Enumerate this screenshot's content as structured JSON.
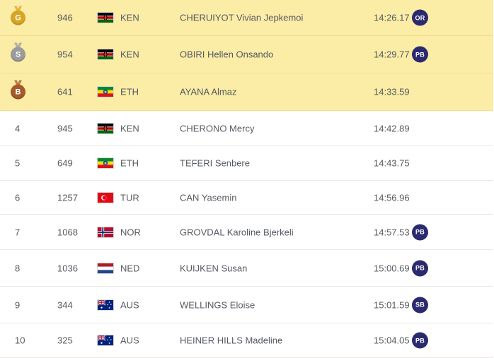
{
  "colors": {
    "medal_row_bg": "#fbeca6",
    "badge_bg": "#2b2a6f",
    "gold": "#d8a623",
    "silver": "#9b9b9b",
    "bronze": "#a45a2a"
  },
  "results": [
    {
      "rank": "",
      "medal": "G",
      "medal_color": "#d8a623",
      "bib": "946",
      "flag": "kenya-flag-icon",
      "country": "KEN",
      "name": "CHERUIYOT Vivian Jepkemoi",
      "mark": "14:26.17",
      "badge": "OR"
    },
    {
      "rank": "",
      "medal": "S",
      "medal_color": "#9b9b9b",
      "bib": "954",
      "flag": "kenya-flag-icon",
      "country": "KEN",
      "name": "OBIRI Hellen Onsando",
      "mark": "14:29.77",
      "badge": "PB"
    },
    {
      "rank": "",
      "medal": "B",
      "medal_color": "#a45a2a",
      "bib": "641",
      "flag": "ethiopia-flag-icon",
      "country": "ETH",
      "name": "AYANA Almaz",
      "mark": "14:33.59",
      "badge": ""
    },
    {
      "rank": "4",
      "medal": "",
      "bib": "945",
      "flag": "kenya-flag-icon",
      "country": "KEN",
      "name": "CHERONO Mercy",
      "mark": "14:42.89",
      "badge": ""
    },
    {
      "rank": "5",
      "medal": "",
      "bib": "649",
      "flag": "ethiopia-flag-icon",
      "country": "ETH",
      "name": "TEFERI Senbere",
      "mark": "14:43.75",
      "badge": ""
    },
    {
      "rank": "6",
      "medal": "",
      "bib": "1257",
      "flag": "turkey-flag-icon",
      "country": "TUR",
      "name": "CAN Yasemin",
      "mark": "14:56.96",
      "badge": ""
    },
    {
      "rank": "7",
      "medal": "",
      "bib": "1068",
      "flag": "norway-flag-icon",
      "country": "NOR",
      "name": "GROVDAL Karoline Bjerkeli",
      "mark": "14:57.53",
      "badge": "PB"
    },
    {
      "rank": "8",
      "medal": "",
      "bib": "1036",
      "flag": "netherlands-flag-icon",
      "country": "NED",
      "name": "KUIJKEN Susan",
      "mark": "15:00.69",
      "badge": "PB"
    },
    {
      "rank": "9",
      "medal": "",
      "bib": "344",
      "flag": "australia-flag-icon",
      "country": "AUS",
      "name": "WELLINGS Eloise",
      "mark": "15:01.59",
      "badge": "SB"
    },
    {
      "rank": "10",
      "medal": "",
      "bib": "325",
      "flag": "australia-flag-icon",
      "country": "AUS",
      "name": "HEINER HILLS Madeline",
      "mark": "15:04.05",
      "badge": "PB"
    }
  ]
}
